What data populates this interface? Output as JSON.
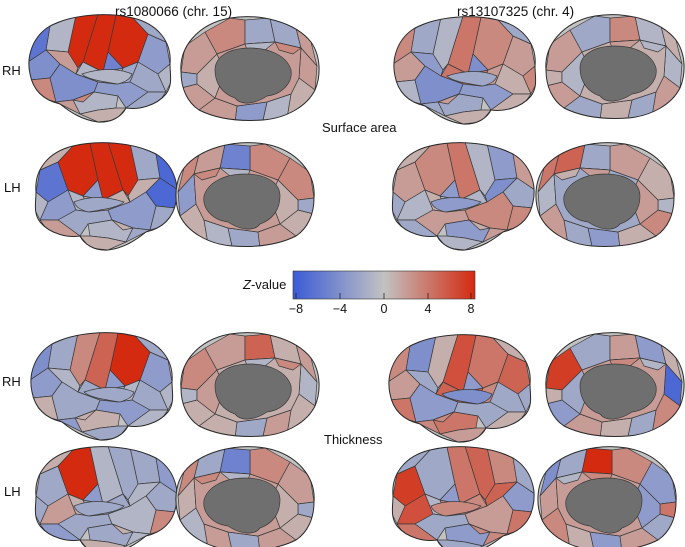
{
  "columns": [
    "rs1080066 (chr. 15)",
    "rs13107325 (chr. 4)"
  ],
  "sections": [
    "Surface area",
    "Thickness"
  ],
  "hemispheres": [
    "RH",
    "LH"
  ],
  "colorbar": {
    "label_italic": "Z",
    "label_rest": "-value",
    "min": -8,
    "max": 8,
    "ticks": [
      "−8",
      "−4",
      "0",
      "4",
      "8"
    ],
    "colors": {
      "low": "#3b5bd6",
      "mid": "#c2c2c2",
      "high": "#d42a10"
    }
  },
  "brains": [
    {
      "section": "Surface area",
      "hemi": "RH",
      "snp": "rs1080066",
      "lateral_regions": [
        -3,
        -2,
        9,
        9,
        8,
        -1,
        -6,
        -4,
        2,
        3,
        -2,
        -1,
        -3,
        -4,
        -2,
        -1,
        1,
        2,
        -1,
        -2,
        -5,
        -1,
        3,
        -2
      ],
      "medial_regions": [
        2,
        3,
        -2,
        -2,
        2,
        2,
        1,
        -1,
        -3,
        2,
        2,
        -2,
        1,
        2,
        3,
        -1
      ]
    },
    {
      "section": "Surface area",
      "hemi": "RH",
      "snp": "rs13107325",
      "lateral_regions": [
        2,
        1,
        3,
        4,
        -1,
        -2,
        3,
        2,
        -3,
        -1,
        2,
        4,
        -3,
        -4,
        1,
        -2,
        1,
        -2,
        3,
        -2,
        -4,
        -3,
        2,
        1
      ],
      "medial_regions": [
        2,
        -2,
        3,
        -1,
        1,
        -1,
        2,
        -2,
        1,
        -2,
        2,
        1,
        -1,
        1,
        -1,
        2
      ]
    },
    {
      "section": "Surface area",
      "hemi": "LH",
      "snp": "rs1080066",
      "lateral_regions": [
        -6,
        -3,
        9,
        9,
        9,
        -2,
        -7,
        -7,
        1,
        -2,
        -1,
        1,
        -2,
        -3,
        2,
        -1,
        1,
        -2,
        -1,
        1,
        -3,
        -2,
        1,
        0
      ],
      "medial_regions": [
        3,
        3,
        -5,
        2,
        3,
        -3,
        1,
        -1,
        -2,
        2,
        1,
        -2,
        1,
        2,
        3,
        -1
      ]
    },
    {
      "section": "Surface area",
      "hemi": "LH",
      "snp": "rs13107325",
      "lateral_regions": [
        2,
        -1,
        3,
        4,
        -1,
        -3,
        2,
        -2,
        -4,
        3,
        1,
        -1,
        2,
        3,
        -2,
        -3,
        -1,
        2,
        -2,
        1,
        -3,
        -2,
        1,
        2
      ],
      "medial_regions": [
        1,
        2,
        -2,
        5,
        4,
        -1,
        2,
        -2,
        -3,
        1,
        3,
        -1,
        2,
        -2,
        1,
        2
      ]
    },
    {
      "section": "Thickness",
      "hemi": "RH",
      "snp": "rs1080066",
      "lateral_regions": [
        -3,
        -2,
        9,
        5,
        3,
        -2,
        -4,
        -3,
        -1,
        1,
        -1,
        -2,
        -3,
        -2,
        -1,
        1,
        -2,
        -3,
        -1,
        -2,
        -3,
        -2,
        1,
        -1
      ],
      "medial_regions": [
        3,
        2,
        5,
        1,
        2,
        -1,
        1,
        2,
        -2,
        1,
        1,
        -1,
        2,
        1,
        3,
        -1
      ]
    },
    {
      "section": "Thickness",
      "hemi": "RH",
      "snp": "rs13107325",
      "lateral_regions": [
        5,
        -2,
        4,
        6,
        1,
        -4,
        3,
        2,
        -2,
        4,
        3,
        5,
        -2,
        -3,
        1,
        4,
        2,
        3,
        -2,
        1,
        -3,
        -2,
        3,
        2
      ],
      "medial_regions": [
        7,
        -2,
        2,
        -3,
        1,
        -7,
        3,
        -2,
        1,
        2,
        -3,
        1,
        -2,
        2,
        -1,
        3
      ]
    },
    {
      "section": "Thickness",
      "hemi": "LH",
      "snp": "rs1080066",
      "lateral_regions": [
        -2,
        2,
        9,
        -1,
        -2,
        -2,
        -3,
        -2,
        -1,
        3,
        1,
        -2,
        -2,
        -1,
        -3,
        -2,
        1,
        -1,
        -2,
        1,
        -3,
        -2,
        1,
        0
      ],
      "medial_regions": [
        2,
        3,
        -5,
        -2,
        3,
        1,
        -1,
        2,
        -2,
        2,
        1,
        -2,
        1,
        2,
        3,
        -1
      ]
    },
    {
      "section": "Thickness",
      "hemi": "LH",
      "snp": "rs13107325",
      "lateral_regions": [
        7,
        6,
        -2,
        4,
        5,
        3,
        -2,
        -3,
        5,
        4,
        -1,
        3,
        -2,
        2,
        4,
        -3,
        -2,
        3,
        1,
        -2,
        -3,
        2,
        3,
        -1
      ],
      "medial_regions": [
        -3,
        3,
        8,
        -2,
        -4,
        2,
        3,
        1,
        -3,
        2,
        -2,
        4,
        -3,
        2,
        -1,
        3
      ]
    }
  ]
}
